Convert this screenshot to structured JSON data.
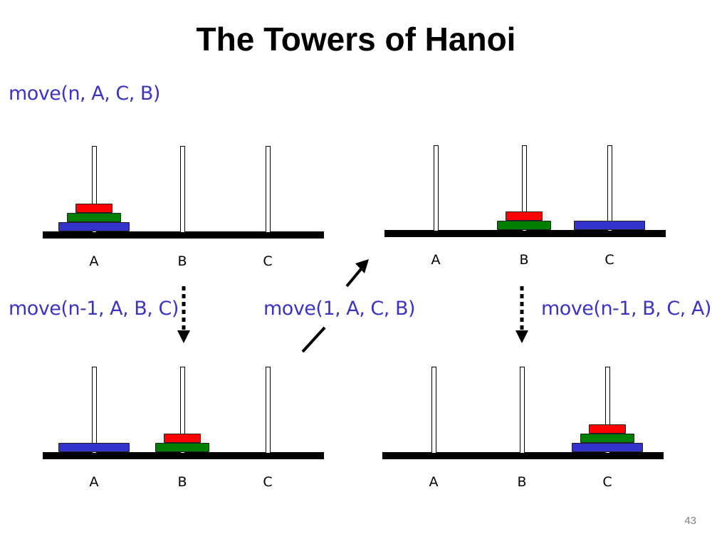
{
  "slide": {
    "title": "The Towers of Hanoi",
    "page_number": "43"
  },
  "calls": {
    "main": "move(n, A, C, B)",
    "step1": "move(n-1, A, B, C)",
    "step2": "move(1, A, C, B)",
    "step3": "move(n-1, B, C, A)"
  },
  "peg_labels": [
    "A",
    "B",
    "C"
  ],
  "disk_colors": {
    "small": "#ff0000",
    "medium": "#008000",
    "large": "#3333cc"
  },
  "states": [
    {
      "name": "initial",
      "A": [
        "large",
        "medium",
        "small"
      ],
      "B": [],
      "C": []
    },
    {
      "name": "after-step1",
      "A": [
        "large"
      ],
      "B": [
        "medium",
        "small"
      ],
      "C": []
    },
    {
      "name": "after-step2",
      "A": [],
      "B": [
        "medium",
        "small"
      ],
      "C": [
        "large"
      ]
    },
    {
      "name": "final",
      "A": [],
      "B": [],
      "C": [
        "large",
        "medium",
        "small"
      ]
    }
  ]
}
